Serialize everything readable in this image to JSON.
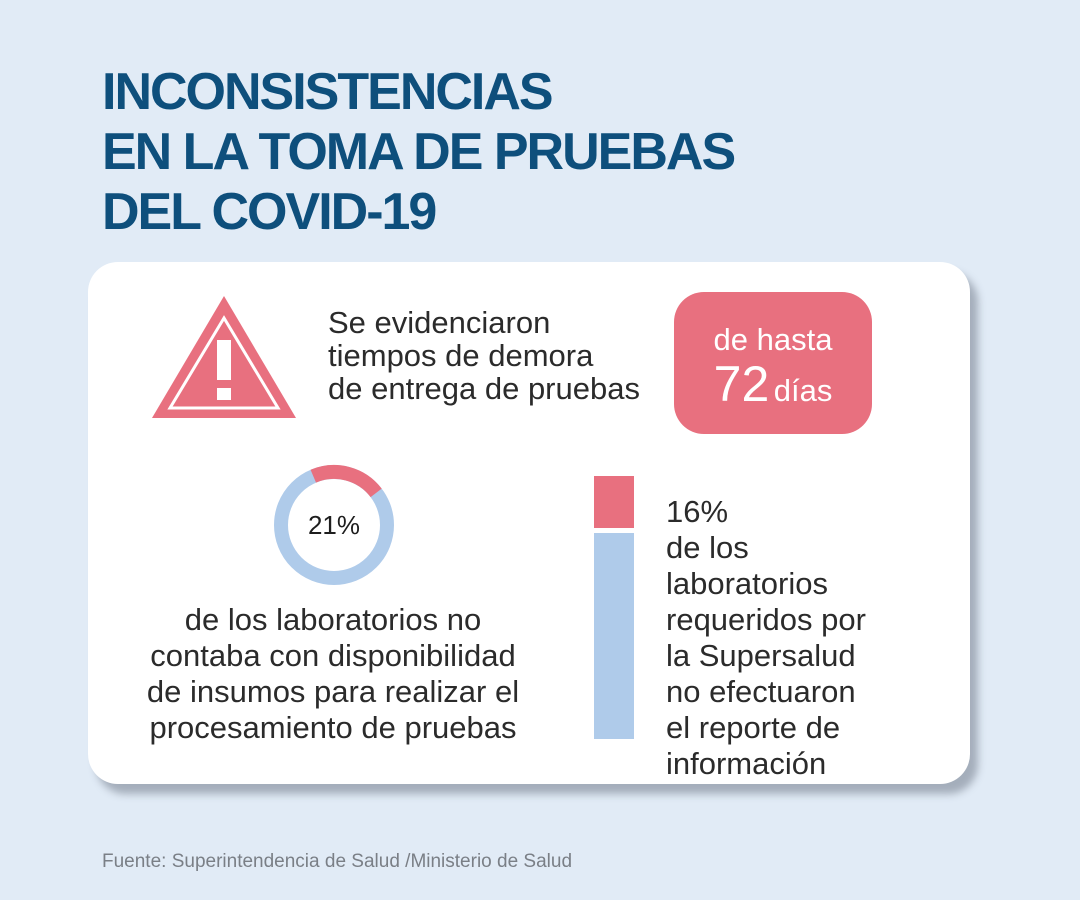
{
  "title": {
    "lines": [
      "INCONSISTENCIAS",
      "EN LA TOMA DE PRUEBAS",
      "DEL COVID-19"
    ]
  },
  "delay": {
    "text_lines": [
      "Se evidenciaron",
      "tiempos de demora",
      "de entrega de pruebas"
    ],
    "badge_top": "de hasta",
    "badge_number": "72",
    "badge_unit": "días",
    "icon": "warning-triangle-icon"
  },
  "supplies": {
    "percent_label": "21%",
    "percent_value": 21,
    "text_lines": [
      "de los laboratorios no",
      "contaba con disponibilidad",
      "de insumos para realizar el",
      "procesamiento de pruebas"
    ]
  },
  "reporting": {
    "percent_label": "16%",
    "percent_value": 16,
    "first_line_rest": " de los",
    "text_lines": [
      "laboratorios",
      "requeridos por",
      "la Supersalud",
      "no efectuaron",
      "el reporte de",
      "información"
    ]
  },
  "source": "Fuente: Superintendencia de Salud /Ministerio de Salud",
  "colors": {
    "background": "#e1ebf6",
    "title": "#0e4f7c",
    "accent_red": "#e8707f",
    "accent_blue": "#afcbea"
  }
}
